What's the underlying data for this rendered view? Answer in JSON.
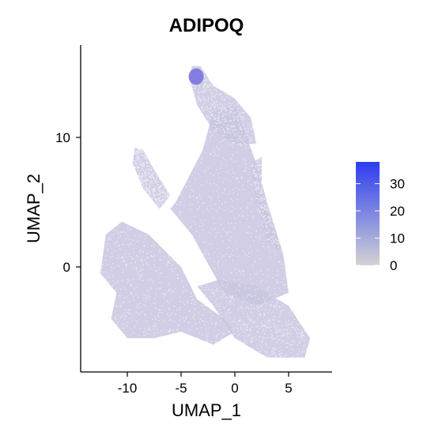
{
  "chart_data": {
    "type": "scatter",
    "title": "ADIPOQ",
    "xlabel": "UMAP_1",
    "ylabel": "UMAP_2",
    "xlim": [
      -14,
      9
    ],
    "ylim": [
      -8,
      17
    ],
    "xticks": [
      -10,
      -5,
      0,
      5
    ],
    "xtick_labels": [
      "-10",
      "-5",
      "0",
      "5"
    ],
    "yticks": [
      0,
      10
    ],
    "ytick_labels": [
      "0",
      "10"
    ],
    "grid": false,
    "legend": {
      "placement": "right",
      "type": "colorbar",
      "min": 0,
      "max": 38,
      "ticks": [
        0,
        10,
        20,
        30
      ],
      "tick_labels": [
        "0",
        "10",
        "20",
        "30"
      ],
      "color_low": "#d3d3d3",
      "color_high": "#2c3cf0"
    },
    "point_color_base": "#c9c5e0",
    "point_color_high": "#6f68e0",
    "regions": [
      {
        "name": "tall-lower-right-mass",
        "polygon": [
          [
            -1.5,
            -1
          ],
          [
            2,
            -1.5
          ],
          [
            5,
            -3
          ],
          [
            7,
            -5.5
          ],
          [
            6.5,
            -7
          ],
          [
            3,
            -7
          ],
          [
            0,
            -5.5
          ],
          [
            -2,
            -3
          ],
          [
            -3.5,
            -1.5
          ]
        ]
      },
      {
        "name": "central-body",
        "polygon": [
          [
            -5.5,
            5
          ],
          [
            -3,
            9
          ],
          [
            -2,
            12
          ],
          [
            0,
            12.5
          ],
          [
            2,
            8
          ],
          [
            3,
            5
          ],
          [
            4.5,
            1
          ],
          [
            5,
            -2
          ],
          [
            2,
            -3
          ],
          [
            -1,
            -2
          ],
          [
            -3,
            1
          ],
          [
            -4,
            2.5
          ],
          [
            -6,
            4.5
          ]
        ]
      },
      {
        "name": "left-arm",
        "polygon": [
          [
            -12,
            2.5
          ],
          [
            -10.5,
            3.5
          ],
          [
            -8,
            2.5
          ],
          [
            -5,
            0
          ],
          [
            -3.5,
            -2.5
          ],
          [
            -1,
            -4
          ],
          [
            0,
            -5
          ],
          [
            -2,
            -6
          ],
          [
            -5,
            -5
          ],
          [
            -7.5,
            -5.5
          ],
          [
            -10,
            -5.5
          ],
          [
            -11.5,
            -4
          ],
          [
            -11,
            -2
          ],
          [
            -12.5,
            -0.5
          ]
        ]
      },
      {
        "name": "upper-left-spur",
        "polygon": [
          [
            -9.3,
            9.2
          ],
          [
            -8.5,
            9
          ],
          [
            -7.5,
            7.5
          ],
          [
            -6,
            5.5
          ],
          [
            -7,
            4.5
          ],
          [
            -8.5,
            6
          ],
          [
            -9.5,
            8
          ]
        ]
      },
      {
        "name": "top-lobes",
        "polygon": [
          [
            -4,
            15.5
          ],
          [
            -3.2,
            15.5
          ],
          [
            -2,
            14
          ],
          [
            0,
            13
          ],
          [
            1.5,
            11.5
          ],
          [
            2,
            9.5
          ],
          [
            0,
            9.5
          ],
          [
            -2,
            10.5
          ],
          [
            -3.5,
            12.5
          ],
          [
            -4.2,
            14.5
          ]
        ]
      },
      {
        "name": "right-spur",
        "polygon": [
          [
            1.5,
            8
          ],
          [
            2.5,
            8.5
          ],
          [
            2.5,
            6
          ],
          [
            3.5,
            3
          ],
          [
            4.5,
            1
          ],
          [
            3,
            2
          ],
          [
            2,
            5
          ]
        ]
      }
    ],
    "hot_spot": {
      "name": "top-expression-hotspot",
      "center": [
        -3.6,
        14.7
      ],
      "radius": 0.7
    }
  }
}
